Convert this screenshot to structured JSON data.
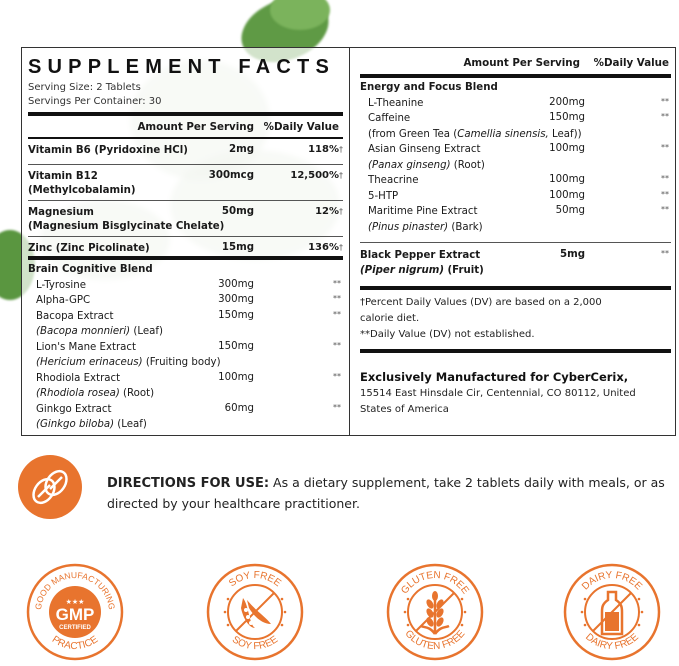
{
  "colors": {
    "accent": "#e8742e",
    "leaf": "#5f9a45"
  },
  "left": {
    "title": "SUPPLEMENT FACTS",
    "serving_size": "Serving Size: 2 Tablets",
    "servings_per_container": "Servings Per Container: 30",
    "col_amount": "Amount Per Serving",
    "col_dv": "%Daily Value",
    "vitamins": [
      {
        "name": "Vitamin B6 (Pyridoxine HCl)",
        "name2": "",
        "amount": "2mg",
        "dv": "118%",
        "mark": "†"
      },
      {
        "name": "Vitamin B12",
        "name2": "(Methylcobalamin)",
        "amount": "300mcg",
        "dv": "12,500%",
        "mark": "†"
      },
      {
        "name": "Magnesium",
        "name2": "(Magnesium Bisglycinate Chelate)",
        "amount": "50mg",
        "dv": "12%",
        "mark": "†"
      },
      {
        "name": "Zinc (Zinc Picolinate)",
        "name2": "",
        "amount": "15mg",
        "dv": "136%",
        "mark": "†"
      }
    ],
    "blend": {
      "title": "Brain Cognitive Blend",
      "items": [
        {
          "name": "L-Tyrosine",
          "sub": [],
          "amount": "300mg",
          "dv": "**"
        },
        {
          "name": "Alpha-GPC",
          "sub": [],
          "amount": "300mg",
          "dv": "**"
        },
        {
          "name": "Bacopa Extract",
          "sub": [
            [
              "(Bacopa monnieri)",
              true
            ],
            [
              " (Leaf)",
              false
            ]
          ],
          "amount": "150mg",
          "dv": "**"
        },
        {
          "name": "Lion's Mane Extract",
          "sub": [
            [
              "(Hericium erinaceus)",
              true
            ],
            [
              " (Fruiting body)",
              false
            ]
          ],
          "amount": "150mg",
          "dv": "**"
        },
        {
          "name": "Rhodiola Extract",
          "sub": [
            [
              "(Rhodiola rosea)",
              true
            ],
            [
              " (Root)",
              false
            ]
          ],
          "amount": "100mg",
          "dv": "**"
        },
        {
          "name": "Ginkgo Extract",
          "sub": [
            [
              "(Ginkgo biloba)",
              true
            ],
            [
              " (Leaf)",
              false
            ]
          ],
          "amount": "60mg",
          "dv": "**"
        }
      ]
    }
  },
  "right": {
    "col_amount": "Amount Per Serving",
    "col_dv": "%Daily Value",
    "blend": {
      "title": "Energy and Focus Blend",
      "items": [
        {
          "name": "L-Theanine",
          "sub": [],
          "amount": "200mg",
          "dv": "**"
        },
        {
          "name": "Caffeine",
          "sub": [
            [
              "(from Green Tea (",
              false
            ],
            [
              "Camellia sinensis,",
              true
            ],
            [
              " Leaf))",
              false
            ]
          ],
          "amount": "150mg",
          "dv": "**"
        },
        {
          "name": "Asian Ginseng Extract",
          "sub": [
            [
              "(Panax ginseng)",
              true
            ],
            [
              " (Root)",
              false
            ]
          ],
          "amount": "100mg",
          "dv": "**"
        },
        {
          "name": "Theacrine",
          "sub": [],
          "amount": "100mg",
          "dv": "**"
        },
        {
          "name": "5-HTP",
          "sub": [],
          "amount": "100mg",
          "dv": "**"
        },
        {
          "name": "Maritime Pine Extract",
          "sub": [
            [
              "(Pinus pinaster)",
              true
            ],
            [
              " (Bark)",
              false
            ]
          ],
          "amount": "50mg",
          "dv": "**"
        }
      ]
    },
    "pepper": {
      "name": "Black Pepper Extract",
      "sub": [
        [
          "(Piper nigrum)",
          true
        ],
        [
          " (Fruit)",
          false
        ]
      ],
      "amount": "5mg",
      "dv": "**"
    },
    "footnote1": "†Percent Daily Values (DV) are based on a 2,000",
    "footnote1b": "calorie diet.",
    "footnote2": "**Daily Value (DV) not established.",
    "manufacturer": "Exclusively Manufactured for CyberCerix,",
    "address1": "15514 East Hinsdale Cir, Centennial, CO 80112, United",
    "address2": "States of America"
  },
  "directions": {
    "label": "DIRECTIONS FOR USE:",
    "text": " As a dietary supplement, take 2 tablets daily with meals, or as directed by your healthcare practitioner.",
    "icon": "tablets-icon"
  },
  "badges": [
    {
      "icon": "gmp-icon",
      "top": "GOOD MANUFACTURING",
      "bottom": "PRACTICE",
      "center": "GMP",
      "center2": "CERTIFIED"
    },
    {
      "icon": "soy-free-icon",
      "top": "SOY FREE",
      "bottom": "SOY FREE"
    },
    {
      "icon": "gluten-free-icon",
      "top": "GLUTEN FREE",
      "bottom": "GLUTEN FREE"
    },
    {
      "icon": "dairy-free-icon",
      "top": "DAIRY FREE",
      "bottom": "DAIRY FREE"
    }
  ]
}
